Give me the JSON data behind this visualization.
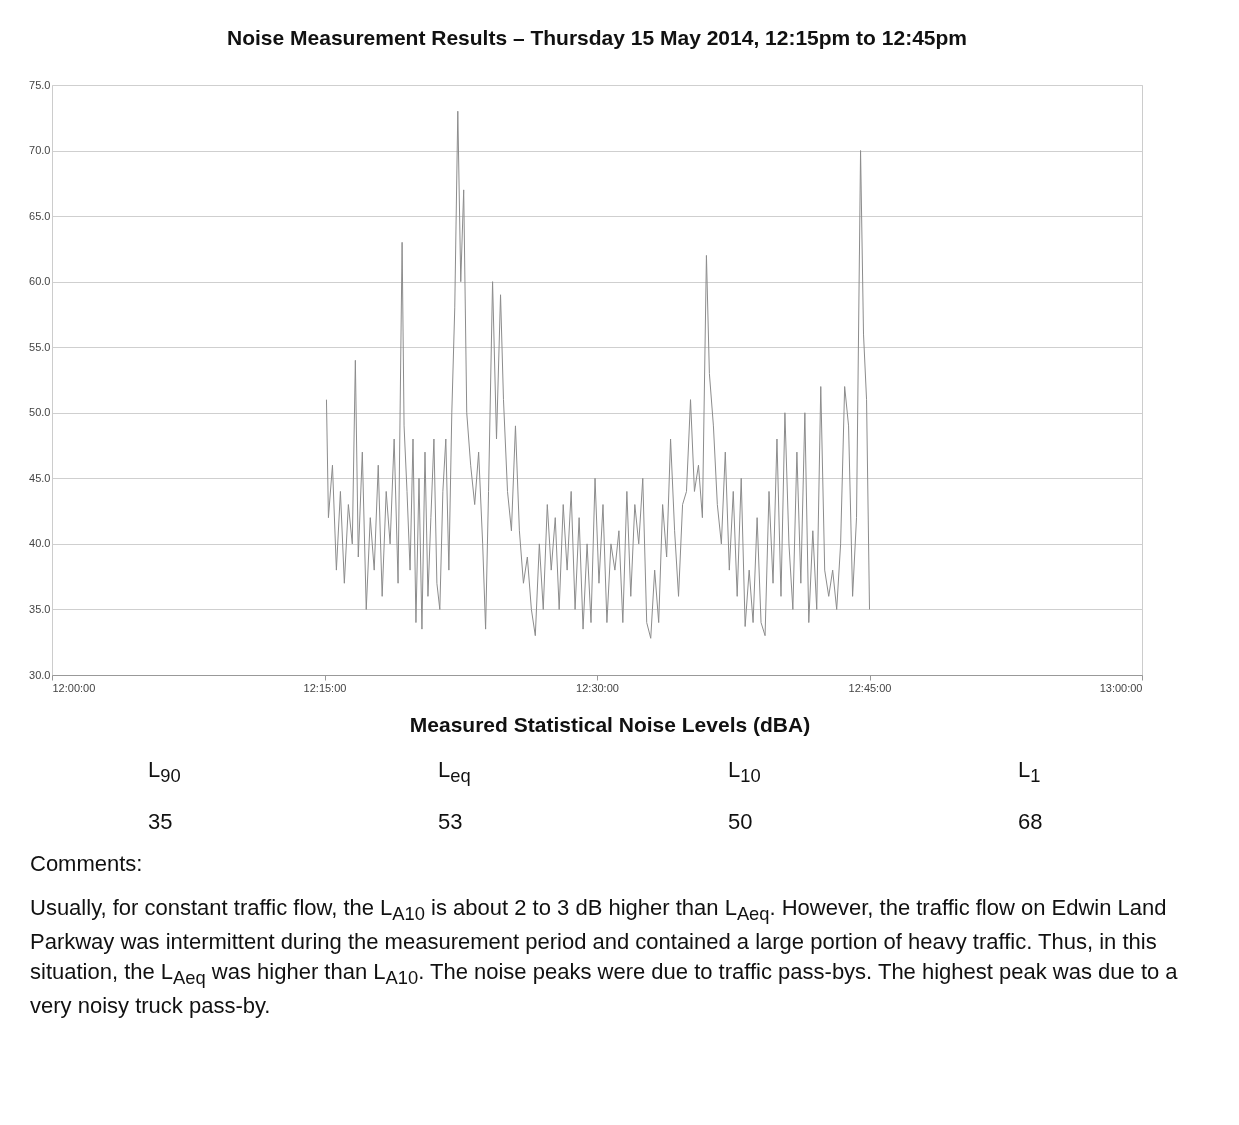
{
  "chart_data": [
    {
      "type": "line",
      "title": "Noise Measurement Results – Thursday 15 May 2014, 12:15pm to 12:45pm",
      "x": [
        12.2518,
        12.2536,
        12.2573,
        12.2609,
        12.2646,
        12.2682,
        12.2719,
        12.2755,
        12.2783,
        12.281,
        12.2847,
        12.2883,
        12.292,
        12.2956,
        12.2993,
        12.3029,
        12.3066,
        12.3102,
        12.3139,
        12.3175,
        12.3212,
        12.323,
        12.3257,
        12.3285,
        12.3312,
        12.3339,
        12.3367,
        12.3394,
        12.3422,
        12.3449,
        12.3476,
        12.3504,
        12.3531,
        12.3558,
        12.3586,
        12.3613,
        12.3641,
        12.3668,
        12.3695,
        12.3723,
        12.375,
        12.3777,
        12.3805,
        12.3841,
        12.3878,
        12.3914,
        12.3951,
        12.3978,
        12.4005,
        12.4042,
        12.4078,
        12.4115,
        12.4142,
        12.4179,
        12.4215,
        12.4252,
        12.4288,
        12.4325,
        12.4361,
        12.4398,
        12.4434,
        12.4471,
        12.4507,
        12.4544,
        12.458,
        12.4617,
        12.4653,
        12.469,
        12.4726,
        12.4763,
        12.4799,
        12.4836,
        12.4872,
        12.4909,
        12.4945,
        12.4982,
        12.5018,
        12.5055,
        12.5091,
        12.5128,
        12.5164,
        12.5201,
        12.5237,
        12.5274,
        12.531,
        12.5347,
        12.5383,
        12.542,
        12.5456,
        12.5493,
        12.5529,
        12.5566,
        12.5602,
        12.5639,
        12.5675,
        12.5712,
        12.5748,
        12.5785,
        12.5821,
        12.5858,
        12.5894,
        12.5931,
        12.5967,
        12.6004,
        12.6031,
        12.6068,
        12.6104,
        12.6141,
        12.6177,
        12.6214,
        12.625,
        12.6286,
        12.6323,
        12.6359,
        12.6396,
        12.6432,
        12.6469,
        12.6505,
        12.6542,
        12.6578,
        12.6615,
        12.6651,
        12.6688,
        12.6724,
        12.6761,
        12.6797,
        12.6834,
        12.687,
        12.6907,
        12.6943,
        12.698,
        12.7016,
        12.7053,
        12.7089,
        12.7126,
        12.7162,
        12.7199,
        12.7235,
        12.7272,
        12.7308,
        12.7345,
        12.7381,
        12.7418,
        12.7445,
        12.7473,
        12.75
      ],
      "series": [
        {
          "color": "#8c8c8c",
          "values": [
            51,
            42,
            46,
            38,
            44,
            37,
            43,
            40,
            54,
            39,
            47,
            35,
            42,
            38,
            46,
            36,
            44,
            40,
            48,
            37,
            63,
            49,
            44,
            38,
            48,
            34,
            45,
            33.5,
            47,
            36,
            42,
            48,
            37,
            35,
            44,
            48,
            38,
            50,
            58,
            73,
            60,
            67,
            50,
            46,
            43,
            47,
            40,
            33.5,
            44,
            60,
            48,
            59,
            51,
            44,
            41,
            49,
            41,
            37,
            39,
            35,
            33,
            40,
            35,
            43,
            38,
            42,
            35,
            43,
            38,
            44,
            35,
            42,
            33.5,
            40,
            34,
            45,
            37,
            43,
            34,
            40,
            38,
            41,
            34,
            44,
            36,
            43,
            40,
            45,
            34,
            32.8,
            38,
            34,
            43,
            39,
            48,
            41,
            36,
            43,
            44,
            51,
            44,
            46,
            42,
            62,
            53,
            49,
            43,
            40,
            47,
            38,
            44,
            36,
            45,
            33.7,
            38,
            34,
            42,
            34,
            33,
            44,
            37,
            48,
            36,
            50,
            40,
            35,
            47,
            37,
            50,
            34,
            41,
            35,
            52,
            38,
            36,
            38,
            35,
            40,
            52,
            49,
            36,
            42,
            70,
            56,
            51,
            35
          ]
        }
      ],
      "xlim": [
        12,
        13
      ],
      "xticks": [
        {
          "value": 12,
          "label": "12:00:00"
        },
        {
          "value": 12.25,
          "label": "12:15:00"
        },
        {
          "value": 12.5,
          "label": "12:30:00"
        },
        {
          "value": 12.75,
          "label": "12:45:00"
        },
        {
          "value": 13,
          "label": "13:00:00"
        }
      ],
      "ylim": [
        30,
        75
      ],
      "yticks": [
        {
          "value": 30,
          "label": "30.0"
        },
        {
          "value": 35,
          "label": "35.0"
        },
        {
          "value": 40,
          "label": "40.0"
        },
        {
          "value": 45,
          "label": "45.0"
        },
        {
          "value": 50,
          "label": "50.0"
        },
        {
          "value": 55,
          "label": "55.0"
        },
        {
          "value": 60,
          "label": "60.0"
        },
        {
          "value": 65,
          "label": "65.0"
        },
        {
          "value": 70,
          "label": "70.0"
        },
        {
          "value": 75,
          "label": "75.0"
        }
      ],
      "grid": "y",
      "marker": "none",
      "line_style": "solid"
    },
    {
      "type": "other",
      "title": "Measured Statistical Noise Levels (dBA)",
      "categories": [
        "L$_{90}$",
        "L$_{eq}$",
        "L$_{10}$",
        "L$_{1}$"
      ],
      "values": [
        35,
        53,
        50,
        68
      ],
      "data_labels": true,
      "annotations": [
        "Comments:",
        "Usually, for constant traffic flow, the L$_{A10}$ is about 2 to 3 dB higher than L$_{Aeq}$.  However, the traffic flow on Edwin Land Parkway was intermittent during the measurement period and contained a large portion of heavy traffic.  Thus, in this situation, the L$_{Aeq}$ was higher than L$_{A10}$.  The noise peaks were due to traffic pass-bys.  The highest peak was due to a very noisy truck pass-by."
      ]
    }
  ]
}
